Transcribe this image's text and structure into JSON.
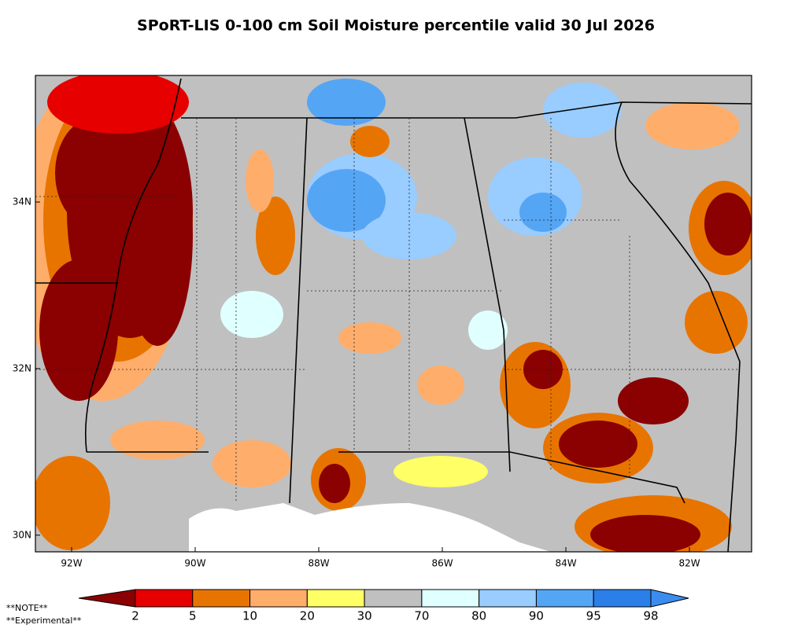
{
  "title": "SPoRT-LIS 0-100 cm Soil Moisture percentile valid 30 Jul 2026",
  "map": {
    "lon_range": [
      -92.586,
      -80.994
    ],
    "lat_range": [
      29.8,
      35.52
    ],
    "lon_ticks": [
      {
        "value": -92,
        "label": "92W"
      },
      {
        "value": -90,
        "label": "90W"
      },
      {
        "value": -88,
        "label": "88W"
      },
      {
        "value": -86,
        "label": "86W"
      },
      {
        "value": -84,
        "label": "84W"
      },
      {
        "value": -82,
        "label": "82W"
      }
    ],
    "lat_ticks": [
      {
        "value": 30,
        "label": "30N"
      },
      {
        "value": 32,
        "label": "32N"
      },
      {
        "value": 34,
        "label": "34N"
      }
    ]
  },
  "colorbar": {
    "ticks": [
      2,
      5,
      10,
      20,
      30,
      70,
      80,
      90,
      95,
      98
    ],
    "colors": [
      "#8b0000",
      "#e60000",
      "#e87400",
      "#ffad6b",
      "#ffff66",
      "#c0c0c0",
      "#e0ffff",
      "#99ccff",
      "#55a5f5",
      "#2b7fe8",
      "#3c8cf0"
    ]
  },
  "notes": [
    "**NOTE**",
    "**Experimental**"
  ]
}
